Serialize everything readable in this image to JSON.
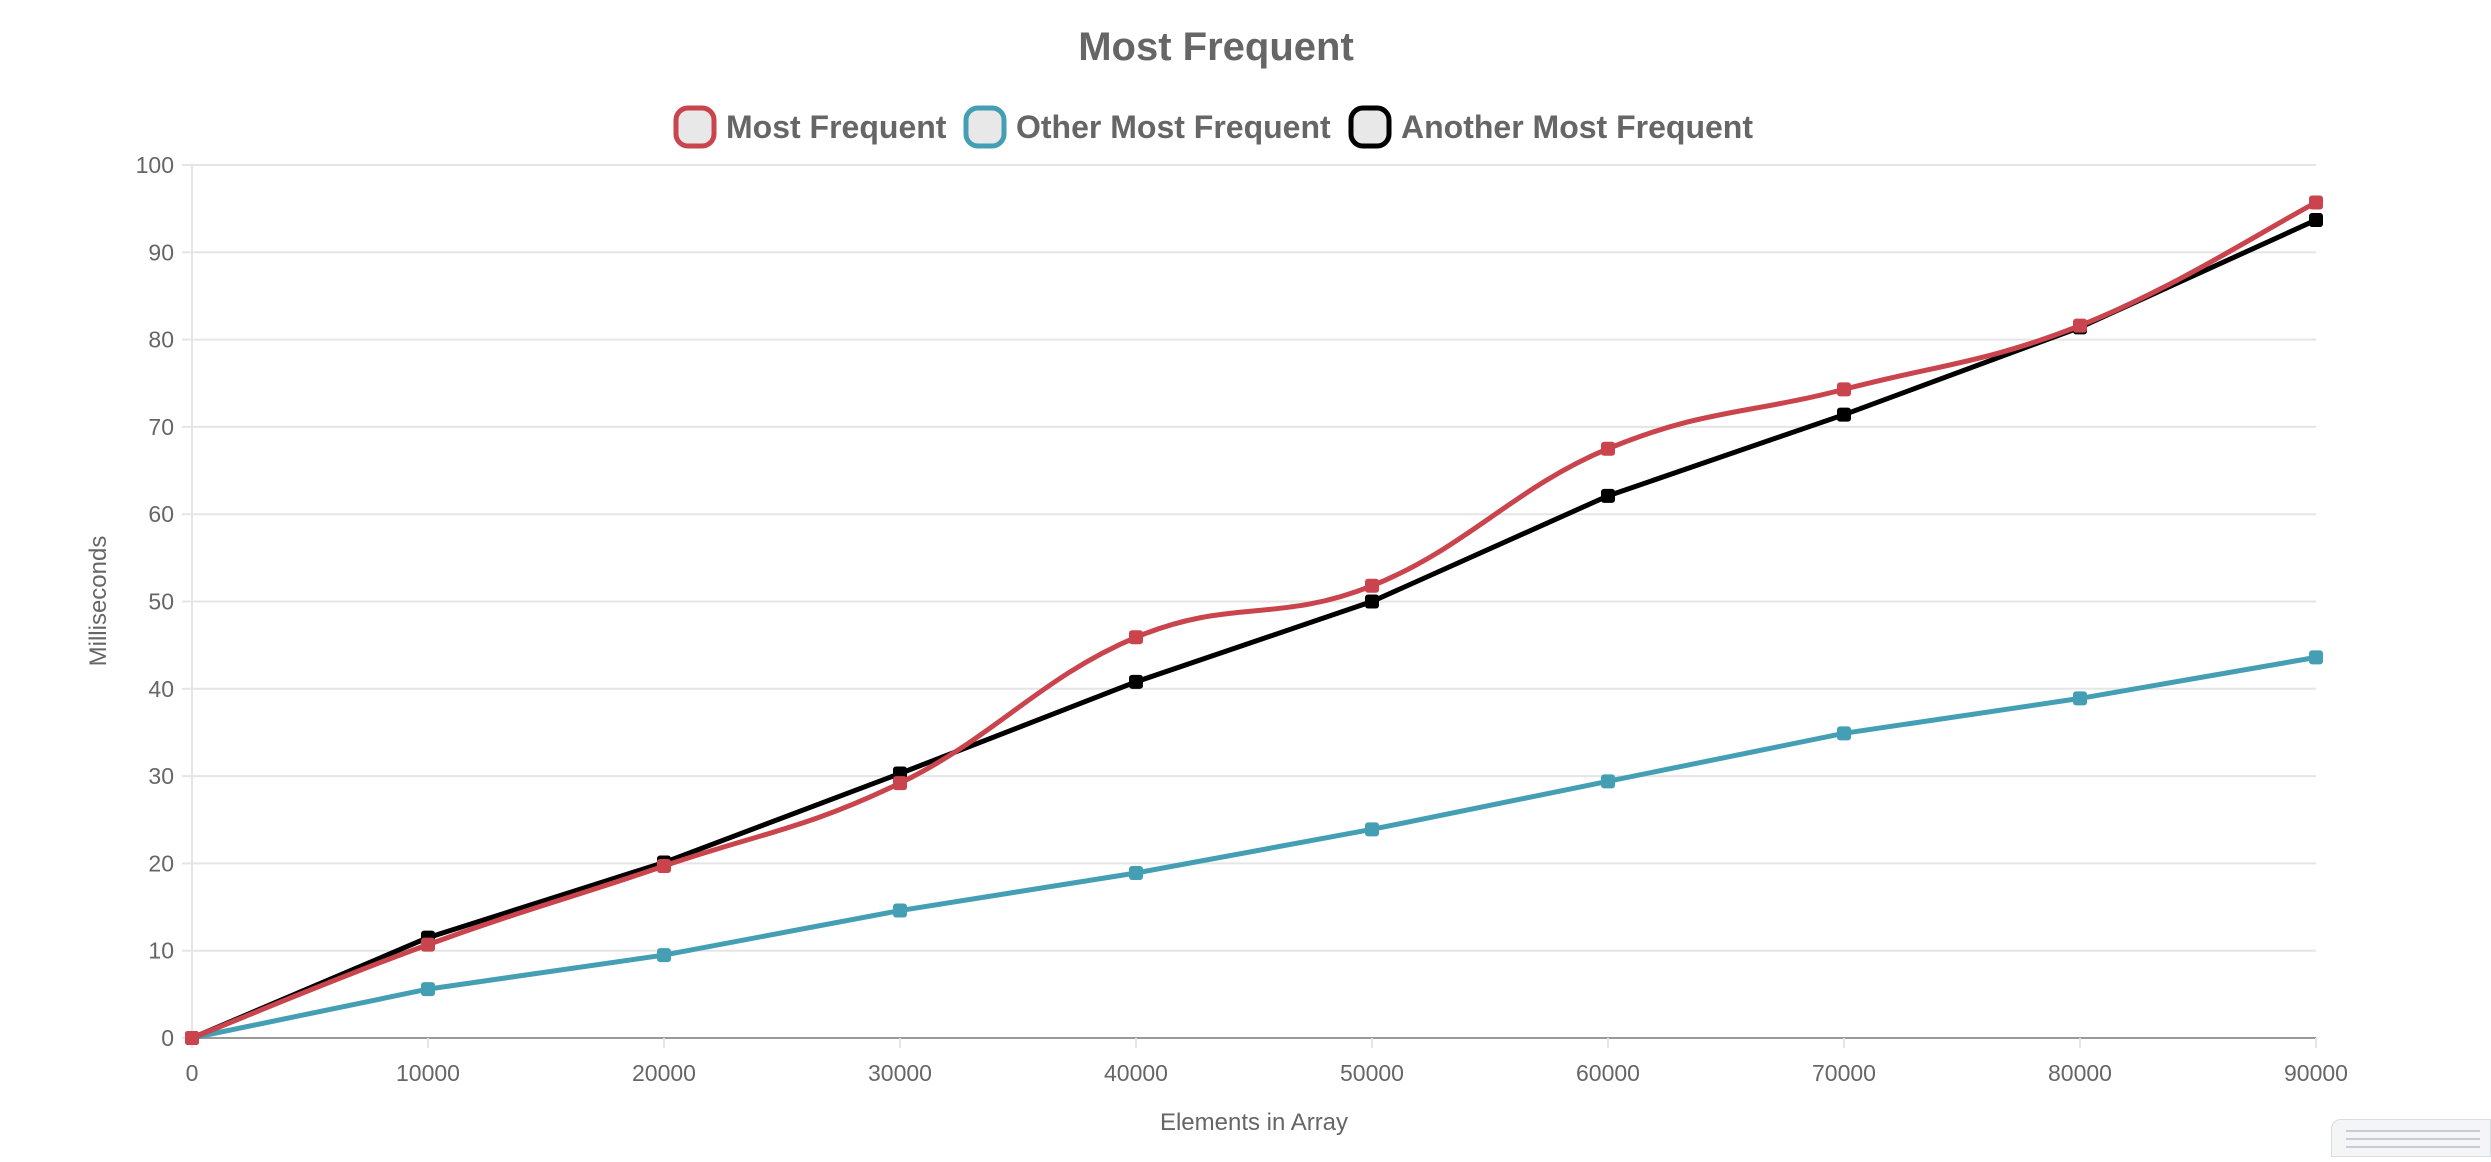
{
  "chart_data": {
    "type": "line",
    "title": "Most Frequent",
    "xlabel": "Elements in Array",
    "ylabel": "Milliseconds",
    "x": [
      0,
      10000,
      20000,
      30000,
      40000,
      50000,
      60000,
      70000,
      80000,
      90000
    ],
    "xlim": [
      0,
      90000
    ],
    "ylim": [
      0,
      100
    ],
    "yticks": [
      0,
      10,
      20,
      30,
      40,
      50,
      60,
      70,
      80,
      90,
      100
    ],
    "grid": true,
    "legend_position": "top-center",
    "series": [
      {
        "name": "Most Frequent",
        "color": "#c9444c",
        "smooth": true,
        "values": [
          0,
          10.7,
          19.7,
          29.2,
          45.9,
          51.8,
          67.5,
          74.3,
          81.6,
          95.7
        ]
      },
      {
        "name": "Other Most Frequent",
        "color": "#459fb4",
        "smooth": false,
        "values": [
          0,
          5.6,
          9.5,
          14.6,
          18.9,
          23.9,
          29.4,
          34.9,
          38.9,
          43.6
        ]
      },
      {
        "name": "Another Most Frequent",
        "color": "#000000",
        "smooth": false,
        "values": [
          0,
          11.5,
          20.1,
          30.3,
          40.8,
          50.0,
          62.1,
          71.4,
          81.4,
          93.7
        ]
      }
    ]
  }
}
